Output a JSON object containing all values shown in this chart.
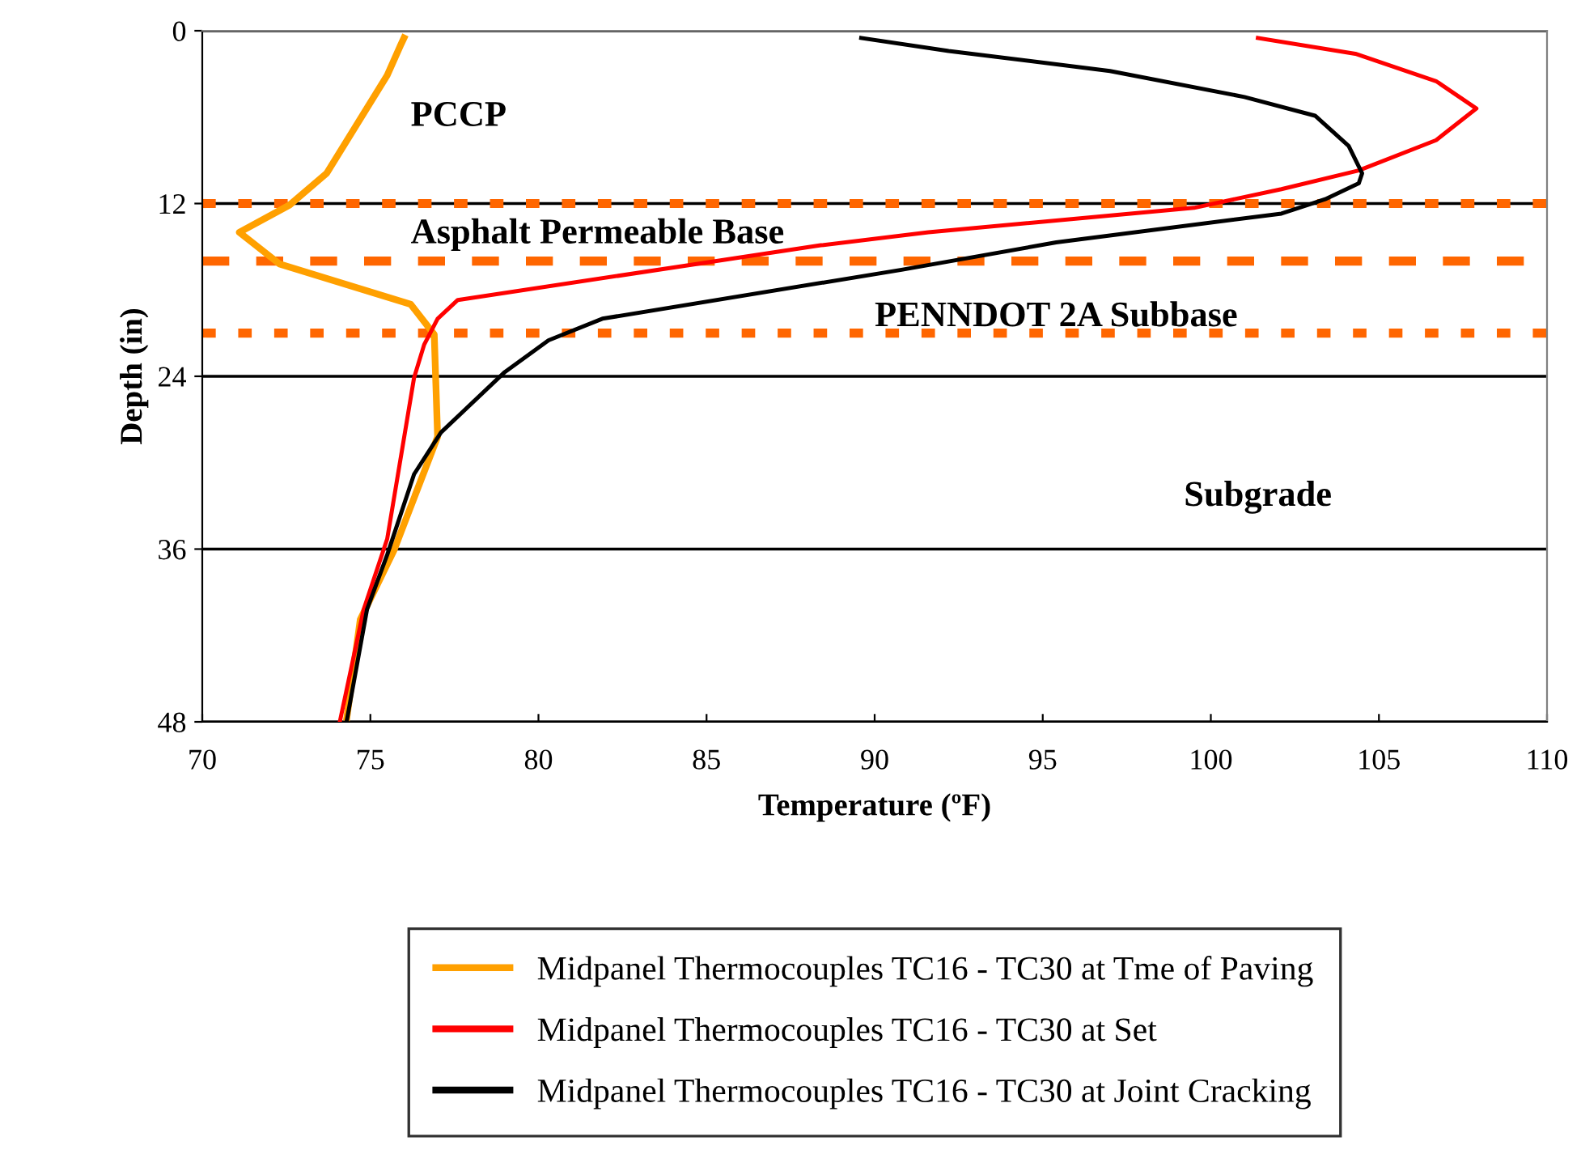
{
  "chart_data": {
    "type": "line",
    "xlabel": "Temperature (ºF)",
    "ylabel": "Depth (in)",
    "xlim": [
      70,
      110
    ],
    "xticks": [
      70,
      75,
      80,
      85,
      90,
      95,
      100,
      105,
      110
    ],
    "ylim": [
      48,
      0
    ],
    "yticks": [
      0,
      12,
      24,
      36,
      48
    ],
    "grid": "y",
    "legend": "bottom",
    "marker": "none",
    "line_style": "solid",
    "series": [
      {
        "name": "Midpanel Thermocouples TC16 - TC30 at Tme of Paving",
        "color": "#ffa000",
        "x": [
          76.0,
          75.9,
          75.5,
          74.6,
          73.7,
          72.6,
          71.1,
          72.3,
          76.2,
          76.9,
          77.0,
          75.7,
          74.7,
          74.3
        ],
        "values": [
          0.5,
          1.0,
          3.1,
          6.5,
          9.9,
          12.1,
          14.0,
          16.2,
          19.0,
          21.1,
          28.2,
          36.1,
          40.9,
          47.7
        ]
      },
      {
        "name": "Midpanel Thermocouples TC16 - TC30 at Set",
        "color": "#ff0000",
        "x": [
          101.4,
          104.3,
          106.7,
          107.9,
          106.7,
          104.4,
          102.1,
          99.5,
          91.6,
          88.4,
          84.7,
          77.6,
          77.0,
          76.6,
          76.3,
          75.5,
          74.8,
          74.1
        ],
        "values": [
          0.5,
          1.6,
          3.5,
          5.4,
          7.6,
          9.7,
          11.0,
          12.3,
          14.0,
          14.9,
          16.2,
          18.7,
          20.0,
          21.8,
          24.1,
          35.3,
          40.2,
          47.9
        ]
      },
      {
        "name": "Midpanel Thermocouples TC16 - TC30 at Joint Cracking",
        "color": "#000000",
        "x": [
          89.6,
          92.2,
          97.0,
          101.0,
          103.1,
          104.1,
          104.5,
          104.4,
          103.4,
          102.1,
          95.4,
          90.8,
          81.9,
          80.3,
          79.0,
          77.1,
          76.3,
          75.5,
          74.9,
          74.3
        ],
        "values": [
          0.5,
          1.4,
          2.8,
          4.6,
          5.9,
          8.0,
          9.9,
          10.6,
          11.7,
          12.7,
          14.7,
          16.6,
          20.0,
          21.5,
          23.7,
          27.9,
          30.8,
          36.4,
          40.2,
          47.9
        ]
      }
    ],
    "ref_lines": [
      {
        "axis": "y",
        "value": 12,
        "color": "#ff6600",
        "line_style": "dotted"
      },
      {
        "axis": "y",
        "value": 16,
        "color": "#ff6600",
        "line_style": "dashed"
      },
      {
        "axis": "y",
        "value": 21,
        "color": "#ff6600",
        "line_style": "dotted"
      }
    ],
    "annotations": [
      "PCCP",
      "Asphalt Permeable Base",
      "PENNDOT 2A Subbase",
      "Subgrade"
    ]
  }
}
